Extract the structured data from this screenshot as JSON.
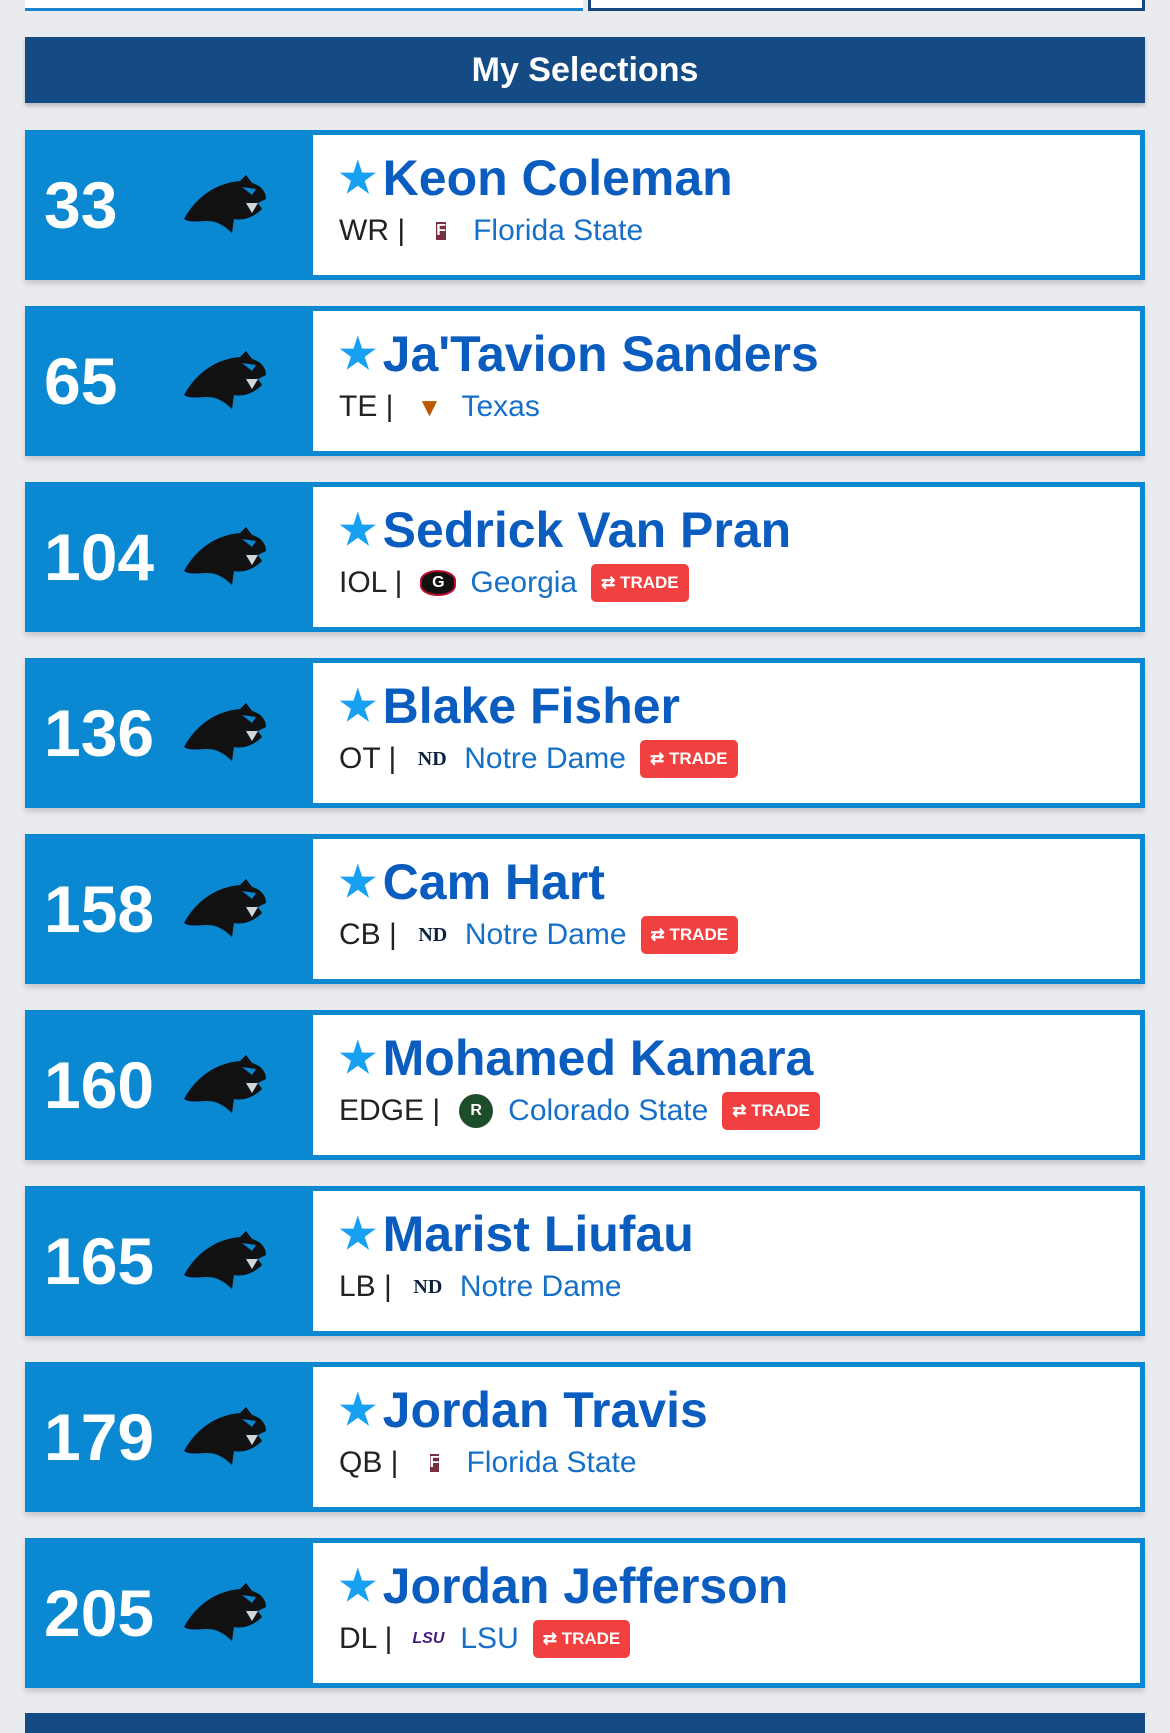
{
  "header": {
    "title": "My Selections"
  },
  "colors": {
    "header": "#154b84",
    "card": "#0a88d1",
    "name": "#0b5cbf",
    "trade": "#f04040"
  },
  "trade_label": "TRADE",
  "picks": [
    {
      "pick": "33",
      "name": "Keon Coleman",
      "pos": "WR |",
      "school": "Florida State",
      "logo": "fsu",
      "trade": false
    },
    {
      "pick": "65",
      "name": "Ja'Tavion Sanders",
      "pos": "TE |",
      "school": "Texas",
      "logo": "texas",
      "trade": false
    },
    {
      "pick": "104",
      "name": "Sedrick Van Pran",
      "pos": "IOL |",
      "school": "Georgia",
      "logo": "georgia",
      "trade": true
    },
    {
      "pick": "136",
      "name": "Blake Fisher",
      "pos": "OT |",
      "school": "Notre Dame",
      "logo": "nd",
      "trade": true
    },
    {
      "pick": "158",
      "name": "Cam Hart",
      "pos": "CB |",
      "school": "Notre Dame",
      "logo": "nd",
      "trade": true
    },
    {
      "pick": "160",
      "name": "Mohamed Kamara",
      "pos": "EDGE |",
      "school": "Colorado State",
      "logo": "csu",
      "trade": true
    },
    {
      "pick": "165",
      "name": "Marist Liufau",
      "pos": "LB |",
      "school": "Notre Dame",
      "logo": "nd",
      "trade": false
    },
    {
      "pick": "179",
      "name": "Jordan Travis",
      "pos": "QB |",
      "school": "Florida State",
      "logo": "fsu",
      "trade": false
    },
    {
      "pick": "205",
      "name": "Jordan Jefferson",
      "pos": "DL |",
      "school": "LSU",
      "logo": "lsu",
      "trade": true
    }
  ]
}
